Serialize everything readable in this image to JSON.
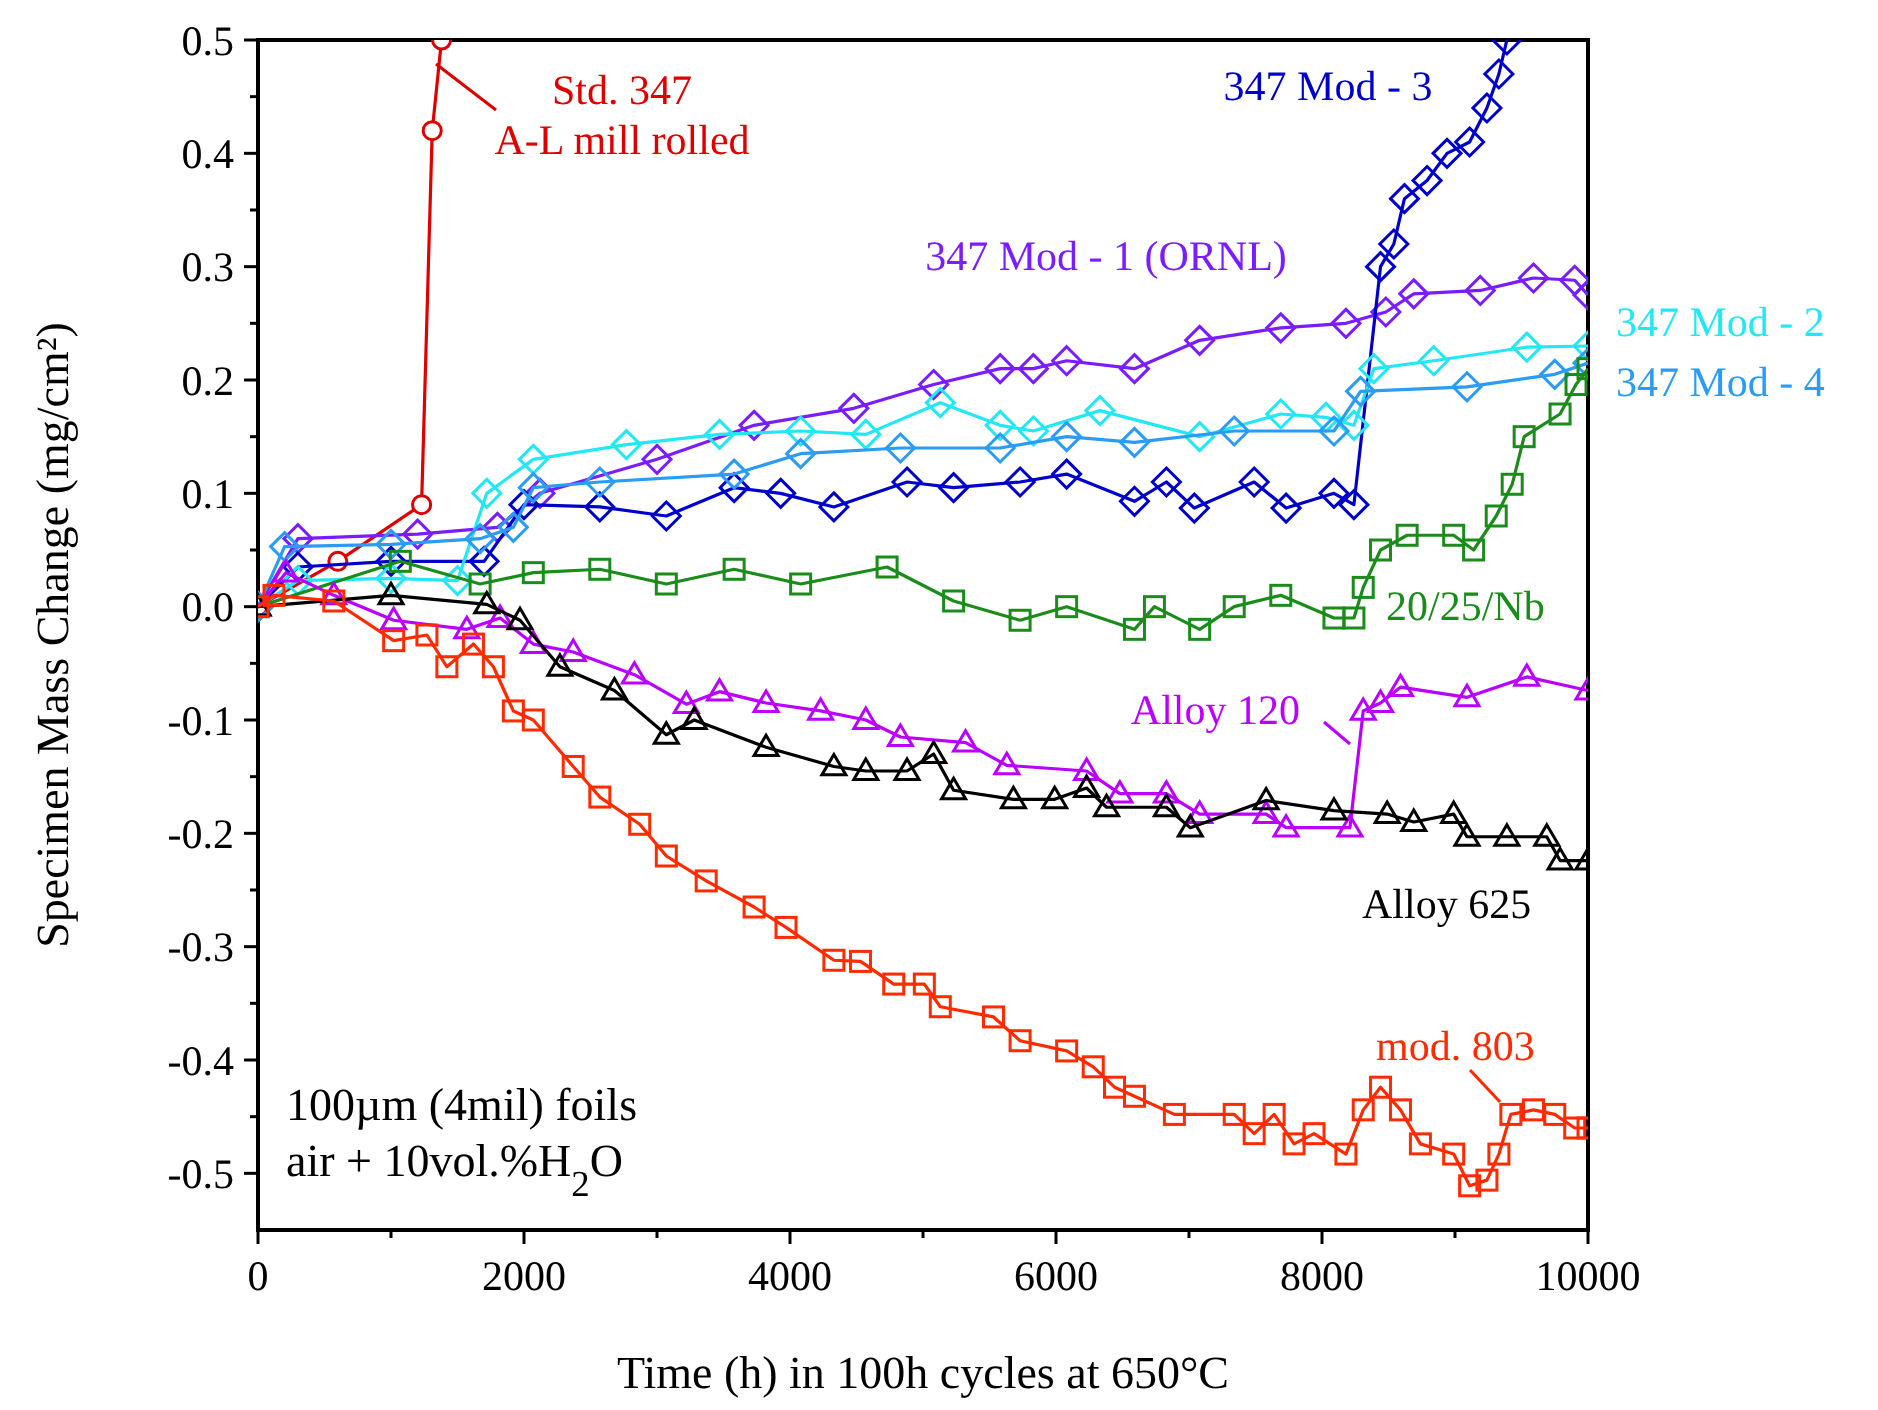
{
  "chart_data": {
    "type": "line",
    "xlabel": "Time (h) in 100h cycles at 650°C",
    "ylabel": "Specimen Mass Change (mg/cm²)",
    "xlim": [
      0,
      10000
    ],
    "ylim": [
      -0.55,
      0.5
    ],
    "xticks": [
      0,
      {
        "value": 1000,
        "label": null
      },
      2000,
      {
        "value": 3000,
        "label": null
      },
      4000,
      {
        "value": 5000,
        "label": null
      },
      6000,
      {
        "value": 7000,
        "label": null
      },
      8000,
      {
        "value": 9000,
        "label": null
      },
      10000
    ],
    "yticks": [
      -0.5,
      {
        "value": -0.45,
        "label": null
      },
      -0.4,
      {
        "value": -0.35,
        "label": null
      },
      -0.3,
      {
        "value": -0.25,
        "label": null
      },
      -0.2,
      {
        "value": -0.15,
        "label": null
      },
      -0.1,
      {
        "value": -0.05,
        "label": null
      },
      {
        "value": 0,
        "label": "0.0"
      },
      {
        "value": 0.05,
        "label": null
      },
      0.1,
      {
        "value": 0.15,
        "label": null
      },
      0.2,
      {
        "value": 0.25,
        "label": null
      },
      0.3,
      {
        "value": 0.35,
        "label": null
      },
      0.4,
      {
        "value": 0.45,
        "label": null
      },
      0.5
    ],
    "annotations": [
      "100µm (4mil) foils",
      "air + 10vol.%H$_{2}$O"
    ],
    "series": [
      {
        "name": "Std. 347\nA-L mill rolled",
        "color": "#e00000",
        "marker": "circle",
        "x": [
          0,
          200,
          600,
          1000,
          1230,
          1310,
          1380
        ],
        "values": [
          0,
          null,
          0.04,
          null,
          0.09,
          0.42,
          0.5
        ]
      },
      {
        "name": "347 Mod - 1 (ORNL)",
        "color": "#7a1cff",
        "marker": "diamond",
        "x": [
          0,
          300,
          1200,
          1800,
          2120,
          3000,
          3730,
          4480,
          5080,
          5580,
          5830,
          6080,
          6590,
          7080,
          7690,
          8180,
          8480,
          8690,
          9190,
          9590,
          9900,
          10000
        ],
        "values": [
          0,
          0.06,
          0.064,
          0.07,
          0.1,
          0.13,
          0.16,
          0.175,
          0.196,
          0.21,
          0.21,
          0.217,
          0.21,
          0.235,
          0.246,
          0.25,
          0.26,
          0.276,
          0.279,
          0.29,
          0.288,
          0.275
        ]
      },
      {
        "name": "347 Mod - 3",
        "color": "#0000cc",
        "marker": "diamond",
        "x": [
          0,
          300,
          1000,
          1700,
          2000,
          2570,
          3070,
          3580,
          3930,
          4330,
          4880,
          5230,
          5730,
          6080,
          6590,
          6830,
          7040,
          7490,
          7730,
          8090,
          8240,
          8440,
          8540,
          8620,
          8790,
          8940,
          9110,
          9240,
          9330,
          9390
        ],
        "values": [
          0,
          0.035,
          0.04,
          0.04,
          0.09,
          0.088,
          0.08,
          0.105,
          0.1,
          0.088,
          0.11,
          0.105,
          0.11,
          0.117,
          0.093,
          0.11,
          0.087,
          0.11,
          0.087,
          0.1,
          0.09,
          0.3,
          0.32,
          0.36,
          0.376,
          0.4,
          0.41,
          0.44,
          0.47,
          0.5
        ]
      },
      {
        "name": "347 Mod - 2",
        "color": "#22e8f5",
        "marker": "diamond",
        "x": [
          0,
          300,
          1000,
          1500,
          1720,
          2070,
          2770,
          3470,
          4080,
          4570,
          5130,
          5580,
          5830,
          6330,
          7080,
          7690,
          8030,
          8240,
          8390,
          8840,
          9540,
          10000
        ],
        "values": [
          0,
          0.023,
          0.025,
          0.023,
          0.1,
          0.13,
          0.143,
          0.152,
          0.155,
          0.152,
          0.18,
          0.16,
          0.155,
          0.173,
          0.15,
          0.17,
          0.167,
          0.16,
          0.21,
          0.217,
          0.229,
          0.23
        ]
      },
      {
        "name": "347 Mod - 4",
        "color": "#2a9cf5",
        "marker": "diamond",
        "x": [
          0,
          200,
          1000,
          1670,
          1920,
          2070,
          2570,
          3580,
          4080,
          4830,
          5580,
          6080,
          6590,
          7340,
          8090,
          8290,
          9090,
          9750,
          10000
        ],
        "values": [
          0,
          0.053,
          0.055,
          0.06,
          0.07,
          0.105,
          0.11,
          0.117,
          0.135,
          0.14,
          0.14,
          0.15,
          0.145,
          0.155,
          0.155,
          0.19,
          0.194,
          0.205,
          0.215
        ]
      },
      {
        "name": "20/25/Nb",
        "color": "#1a8c1a",
        "marker": "square",
        "x": [
          0,
          1070,
          1670,
          2070,
          2570,
          3070,
          3580,
          4080,
          4730,
          5230,
          5730,
          6080,
          6590,
          6740,
          7080,
          7340,
          7690,
          8090,
          8240,
          8310,
          8440,
          8640,
          8990,
          9140,
          9310,
          9430,
          9520,
          9790,
          9910,
          10000
        ],
        "values": [
          0,
          0.04,
          0.02,
          0.03,
          0.033,
          0.02,
          0.033,
          0.02,
          0.035,
          0.005,
          -0.012,
          0,
          -0.02,
          0,
          -0.02,
          0,
          0.01,
          -0.01,
          -0.01,
          0.017,
          0.05,
          0.063,
          0.063,
          0.05,
          0.08,
          0.108,
          0.15,
          0.17,
          0.196,
          0.21
        ]
      },
      {
        "name": "Alloy 120",
        "color": "#bb00ff",
        "marker": "triangle",
        "x": [
          0,
          210,
          570,
          1020,
          1570,
          1820,
          2070,
          2370,
          2830,
          3220,
          3470,
          3820,
          4230,
          4570,
          4830,
          5320,
          5630,
          6230,
          6480,
          6830,
          7080,
          7580,
          7730,
          8210,
          8310,
          8440,
          8590,
          9090,
          9540,
          10000
        ],
        "values": [
          0,
          0.03,
          0.01,
          -0.012,
          -0.02,
          -0.01,
          -0.033,
          -0.04,
          -0.06,
          -0.086,
          -0.075,
          -0.085,
          -0.092,
          -0.1,
          -0.115,
          -0.12,
          -0.14,
          -0.145,
          -0.165,
          -0.165,
          -0.183,
          -0.183,
          -0.195,
          -0.195,
          -0.092,
          -0.085,
          -0.071,
          -0.08,
          -0.062,
          -0.074
        ]
      },
      {
        "name": "Alloy 625",
        "color": "#000000",
        "marker": "triangle",
        "x": [
          0,
          1000,
          1720,
          1970,
          2270,
          2680,
          3070,
          3280,
          3820,
          4330,
          4570,
          4880,
          5080,
          5230,
          5680,
          5990,
          6230,
          6380,
          6830,
          7010,
          7580,
          8090,
          8490,
          8690,
          8990,
          9090,
          9390,
          9690,
          9790,
          10000
        ],
        "values": [
          0,
          0.01,
          0.002,
          -0.012,
          -0.053,
          -0.074,
          -0.113,
          -0.1,
          -0.124,
          -0.141,
          -0.145,
          -0.145,
          -0.13,
          -0.162,
          -0.17,
          -0.17,
          -0.16,
          -0.177,
          -0.177,
          -0.195,
          -0.171,
          -0.18,
          -0.183,
          -0.19,
          -0.183,
          -0.203,
          -0.203,
          -0.203,
          -0.224,
          -0.224
        ]
      },
      {
        "name": "mod. 803",
        "color": "#ff2a00",
        "marker": "square",
        "x": [
          0,
          120,
          570,
          1020,
          1270,
          1420,
          1620,
          1770,
          1920,
          2070,
          2370,
          2570,
          2870,
          3070,
          3370,
          3730,
          3970,
          4330,
          4530,
          4780,
          5010,
          5130,
          5530,
          5730,
          6080,
          6280,
          6440,
          6590,
          6890,
          7340,
          7490,
          7640,
          7790,
          7940,
          8180,
          8310,
          8440,
          8590,
          8740,
          8990,
          9110,
          9240,
          9330,
          9420,
          9590,
          9750,
          9900,
          10000
        ],
        "values": [
          0,
          0.01,
          0.005,
          -0.03,
          -0.025,
          -0.053,
          -0.033,
          -0.053,
          -0.092,
          -0.1,
          -0.141,
          -0.168,
          -0.192,
          -0.22,
          -0.242,
          -0.265,
          -0.283,
          -0.312,
          -0.313,
          -0.333,
          -0.333,
          -0.353,
          -0.362,
          -0.383,
          -0.392,
          -0.406,
          -0.424,
          -0.432,
          -0.448,
          -0.448,
          -0.465,
          -0.448,
          -0.474,
          -0.465,
          -0.483,
          -0.444,
          -0.424,
          -0.444,
          -0.474,
          -0.483,
          -0.511,
          -0.506,
          -0.483,
          -0.448,
          -0.444,
          -0.448,
          -0.46,
          -0.46
        ]
      }
    ]
  }
}
